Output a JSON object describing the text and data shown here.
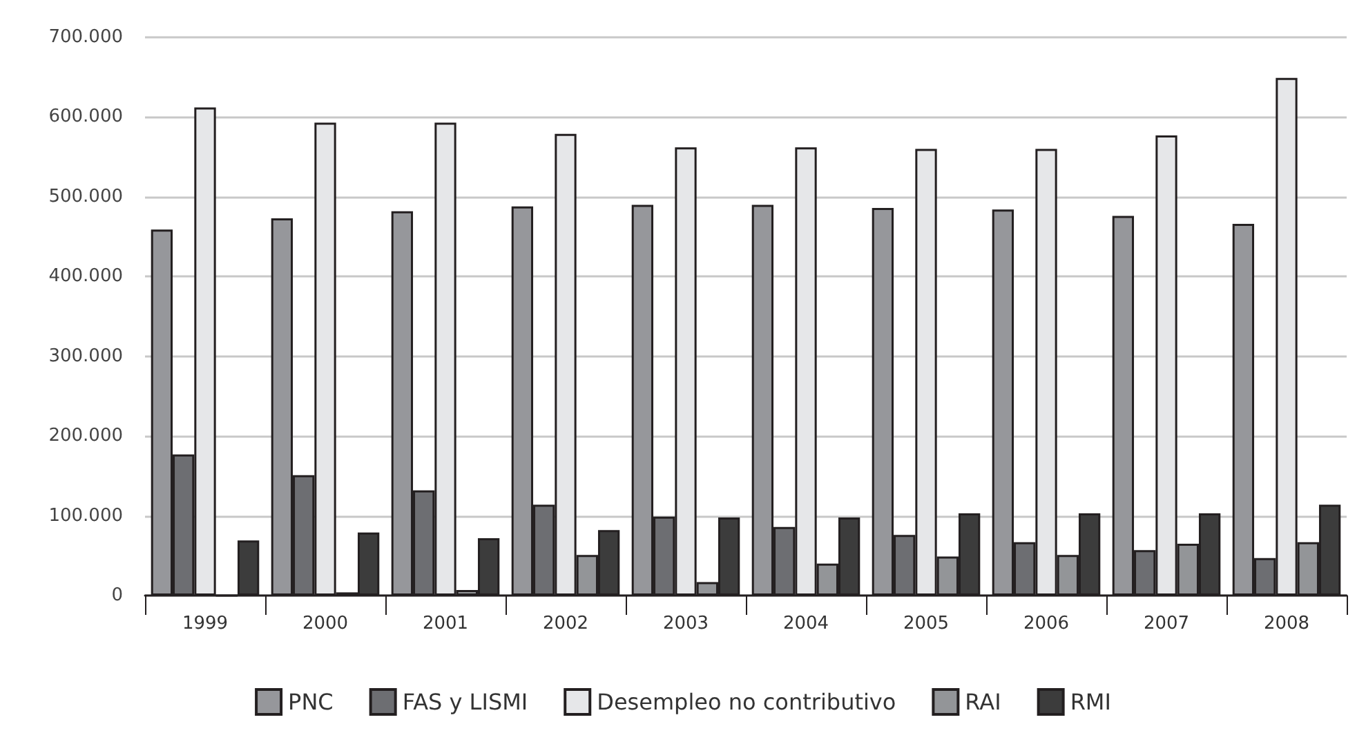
{
  "chart_data": {
    "type": "bar",
    "categories": [
      "1999",
      "2000",
      "2001",
      "2002",
      "2003",
      "2004",
      "2005",
      "2006",
      "2007",
      "2008"
    ],
    "series": [
      {
        "name": "PNC",
        "color": "#96979b",
        "values": [
          459000,
          473000,
          482000,
          488000,
          490000,
          490000,
          486000,
          484000,
          476000,
          466000
        ]
      },
      {
        "name": "FAS y LISMI",
        "color": "#6d6e72",
        "values": [
          177000,
          151000,
          132000,
          114000,
          99000,
          86000,
          76000,
          67000,
          57000,
          47000
        ]
      },
      {
        "name": "Desempleo no contributivo",
        "color": "#e6e7e9",
        "values": [
          612000,
          593000,
          593000,
          579000,
          562000,
          562000,
          560000,
          560000,
          577000,
          649000
        ]
      },
      {
        "name": "RAI",
        "color": "#939598",
        "values": [
          0,
          4000,
          7000,
          51000,
          17000,
          40000,
          49000,
          51000,
          65000,
          67000
        ]
      },
      {
        "name": "RMI",
        "color": "#3c3c3c",
        "values": [
          69000,
          79000,
          72000,
          82000,
          98000,
          98000,
          103000,
          103000,
          103000,
          114000
        ]
      }
    ],
    "ylim": [
      0,
      700000
    ],
    "yticks": [
      {
        "value": 0,
        "label": "0"
      },
      {
        "value": 100000,
        "label": "100.000"
      },
      {
        "value": 200000,
        "label": "200.000"
      },
      {
        "value": 300000,
        "label": "300.000"
      },
      {
        "value": 400000,
        "label": "400.000"
      },
      {
        "value": 500000,
        "label": "500.000"
      },
      {
        "value": 600000,
        "label": "600.000"
      },
      {
        "value": 700000,
        "label": "700.000"
      }
    ],
    "grid": "y",
    "legend": "bottom"
  }
}
